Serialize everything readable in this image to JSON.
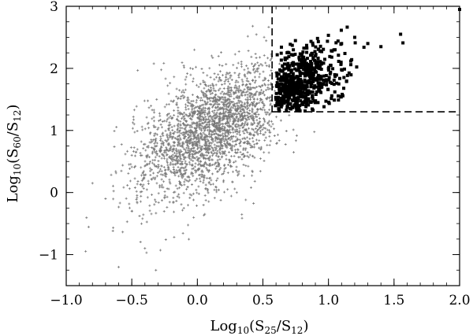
{
  "chart_data": {
    "type": "scatter",
    "title": "",
    "xlabel": {
      "prefix": "Log",
      "prefix_sub": "10",
      "open": "(S",
      "num_sub": "25",
      "mid": "/S",
      "den_sub": "12",
      "close": ")"
    },
    "ylabel": {
      "prefix": "Log",
      "prefix_sub": "10",
      "open": "(S",
      "num_sub": "60",
      "mid": "/S",
      "den_sub": "12",
      "close": ")"
    },
    "xlim": [
      -1.0,
      2.0
    ],
    "ylim": [
      -1.5,
      3.0
    ],
    "x_ticks": [
      -1.0,
      -0.5,
      0.0,
      0.5,
      1.0,
      1.5,
      2.0
    ],
    "x_tick_labels": [
      "−1.0",
      "−0.5",
      "0.0",
      "0.5",
      "1.0",
      "1.5",
      "2.0"
    ],
    "y_ticks": [
      -1,
      0,
      1,
      2,
      3
    ],
    "y_tick_labels": [
      "−1",
      "0",
      "1",
      "2",
      "3"
    ],
    "grid": false,
    "legend": "none",
    "selection_region": {
      "x_min": 0.57,
      "y_min": 1.3,
      "line_style": "dashed"
    },
    "series": [
      {
        "marker": "plus",
        "color": "#7a7a7a",
        "count": 2400,
        "description_of_distribution": "broad diagonal cloud",
        "points_sample": [
          [
            -0.8,
            0.15
          ],
          [
            -0.7,
            -0.1
          ],
          [
            -0.6,
            -1.2
          ],
          [
            -0.5,
            0.6
          ],
          [
            -0.4,
            -0.9
          ],
          [
            -0.3,
            0.4
          ],
          [
            -0.2,
            0.9
          ],
          [
            -0.1,
            0.7
          ],
          [
            0.0,
            1.1
          ],
          [
            0.05,
            1.2
          ],
          [
            0.1,
            1.0
          ],
          [
            0.2,
            1.3
          ],
          [
            0.3,
            1.1
          ],
          [
            0.4,
            1.4
          ],
          [
            0.5,
            1.6
          ]
        ]
      },
      {
        "marker": "square",
        "color": "#000000",
        "count": 650,
        "description_of_distribution": "selected warm sources",
        "points_sample": [
          [
            0.6,
            1.5
          ],
          [
            0.65,
            1.7
          ],
          [
            0.7,
            1.9
          ],
          [
            0.75,
            1.6
          ],
          [
            0.8,
            2.1
          ],
          [
            0.85,
            1.8
          ],
          [
            0.9,
            2.2
          ],
          [
            0.95,
            1.7
          ],
          [
            1.0,
            2.0
          ],
          [
            1.05,
            2.3
          ],
          [
            1.1,
            2.4
          ],
          [
            1.2,
            2.5
          ],
          [
            1.3,
            2.4
          ],
          [
            1.4,
            2.35
          ],
          [
            1.55,
            2.55
          ],
          [
            2.0,
            2.95
          ]
        ]
      }
    ]
  }
}
